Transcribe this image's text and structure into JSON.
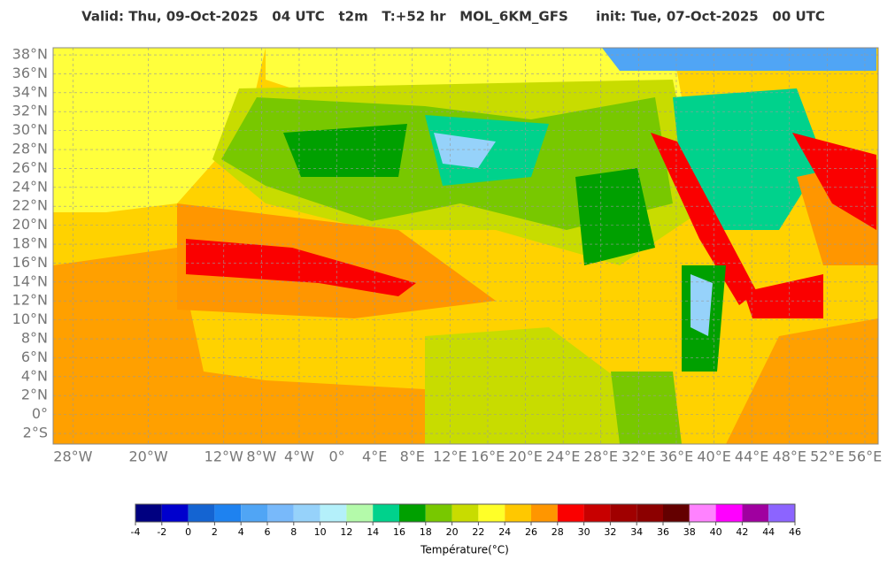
{
  "title": "Valid: Thu, 09-Oct-2025   04 UTC   t2m   T:+52 hr   MOL_6KM_GFS      init: Tue, 07-Oct-2025   00 UTC",
  "map": {
    "lat_ticks": [
      {
        "value": 38,
        "label": "38°N"
      },
      {
        "value": 36,
        "label": "36°N"
      },
      {
        "value": 34,
        "label": "34°N"
      },
      {
        "value": 32,
        "label": "32°N"
      },
      {
        "value": 30,
        "label": "30°N"
      },
      {
        "value": 28,
        "label": "28°N"
      },
      {
        "value": 26,
        "label": "26°N"
      },
      {
        "value": 24,
        "label": "24°N"
      },
      {
        "value": 22,
        "label": "22°N"
      },
      {
        "value": 20,
        "label": "20°N"
      },
      {
        "value": 18,
        "label": "18°N"
      },
      {
        "value": 16,
        "label": "16°N"
      },
      {
        "value": 14,
        "label": "14°N"
      },
      {
        "value": 12,
        "label": "12°N"
      },
      {
        "value": 10,
        "label": "10°N"
      },
      {
        "value": 8,
        "label": "8°N"
      },
      {
        "value": 6,
        "label": "6°N"
      },
      {
        "value": 4,
        "label": "4°N"
      },
      {
        "value": 2,
        "label": "2°N"
      },
      {
        "value": 0,
        "label": "0°"
      },
      {
        "value": -2,
        "label": "2°S"
      }
    ],
    "lon_ticks": [
      {
        "value": -28,
        "label": "28°W"
      },
      {
        "value": -20,
        "label": "20°W"
      },
      {
        "value": -12,
        "label": "12°W"
      },
      {
        "value": -8,
        "label": "8°W"
      },
      {
        "value": -4,
        "label": "4°W"
      },
      {
        "value": 0,
        "label": "0°"
      },
      {
        "value": 4,
        "label": "4°E"
      },
      {
        "value": 8,
        "label": "8°E"
      },
      {
        "value": 12,
        "label": "12°E"
      },
      {
        "value": 16,
        "label": "16°E"
      },
      {
        "value": 20,
        "label": "20°E"
      },
      {
        "value": 24,
        "label": "24°E"
      },
      {
        "value": 28,
        "label": "28°E"
      },
      {
        "value": 32,
        "label": "32°E"
      },
      {
        "value": 36,
        "label": "36°E"
      },
      {
        "value": 40,
        "label": "40°E"
      },
      {
        "value": 44,
        "label": "44°E"
      },
      {
        "value": 48,
        "label": "48°E"
      },
      {
        "value": 52,
        "label": "52°E"
      },
      {
        "value": 56,
        "label": "56°E"
      }
    ]
  },
  "colorbar": {
    "label": "Température(°C)",
    "ticks": [
      -4,
      -2,
      0,
      2,
      4,
      6,
      8,
      10,
      12,
      14,
      16,
      18,
      20,
      22,
      24,
      26,
      28,
      30,
      32,
      34,
      36,
      38,
      40,
      42,
      44,
      46
    ],
    "colors": [
      "#000080",
      "#0000cd",
      "#1464d2",
      "#1e82f0",
      "#50a5f5",
      "#78b9fa",
      "#96d2fa",
      "#b4f0fa",
      "#b4faaa",
      "#00d28c",
      "#00a000",
      "#78c800",
      "#c8dc00",
      "#ffff28",
      "#ffc800",
      "#ff9600",
      "#fa0000",
      "#c80000",
      "#a00000",
      "#8c0000",
      "#640000",
      "#ff82ff",
      "#ff00ff",
      "#a000a0",
      "#8c64ff"
    ]
  }
}
